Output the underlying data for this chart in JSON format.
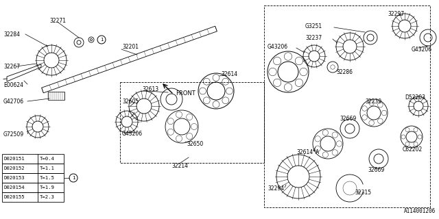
{
  "background_color": "#ffffff",
  "diagram_id": "A114001206",
  "table_rows": [
    [
      "D020151",
      "T=0.4"
    ],
    [
      "D020152",
      "T=1.1"
    ],
    [
      "D020153",
      "T=1.5"
    ],
    [
      "D020154",
      "T=1.9"
    ],
    [
      "D020155",
      "T=2.3"
    ]
  ],
  "line_color": "#000000",
  "text_color": "#000000"
}
